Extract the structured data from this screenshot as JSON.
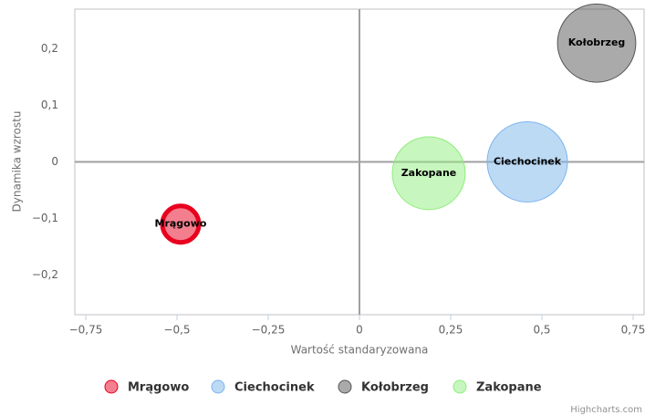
{
  "chart_data": {
    "type": "bubble",
    "x_label": "Wartość standaryzowana",
    "y_label": "Dynamika wzrostu",
    "credits": "Highcharts.com",
    "xlim": [
      -0.78,
      0.78
    ],
    "ylim": [
      -0.27,
      0.27
    ],
    "xticks": [
      {
        "value": -0.75,
        "label": "−0,75"
      },
      {
        "value": -0.5,
        "label": "−0,5"
      },
      {
        "value": -0.25,
        "label": "−0,25"
      },
      0,
      {
        "value": 0.25,
        "label": "0,25"
      },
      {
        "value": 0.5,
        "label": "0,5"
      },
      {
        "value": 0.75,
        "label": "0,75"
      }
    ],
    "yticks": [
      {
        "value": -0.2,
        "label": "−0,2"
      },
      {
        "value": -0.1,
        "label": "−0,1"
      },
      0,
      {
        "value": 0.1,
        "label": "0,1"
      },
      {
        "value": 0.2,
        "label": "0,2"
      }
    ],
    "series": [
      {
        "name": "Mrągowo",
        "color": "#e8001e",
        "x": [
          -0.49
        ],
        "values": [
          -0.11
        ],
        "sizes": [
          5
        ]
      },
      {
        "name": "Ciechocinek",
        "color": "#7cb5ec",
        "x": [
          0.46
        ],
        "values": [
          0.0
        ],
        "sizes": [
          20
        ]
      },
      {
        "name": "Kołobrzeg",
        "color": "#555555",
        "x": [
          0.65
        ],
        "values": [
          0.21
        ],
        "sizes": [
          19
        ]
      },
      {
        "name": "Zakopane",
        "color": "#90ed7d",
        "x": [
          0.19
        ],
        "values": [
          -0.02
        ],
        "sizes": [
          16.5
        ]
      }
    ]
  }
}
